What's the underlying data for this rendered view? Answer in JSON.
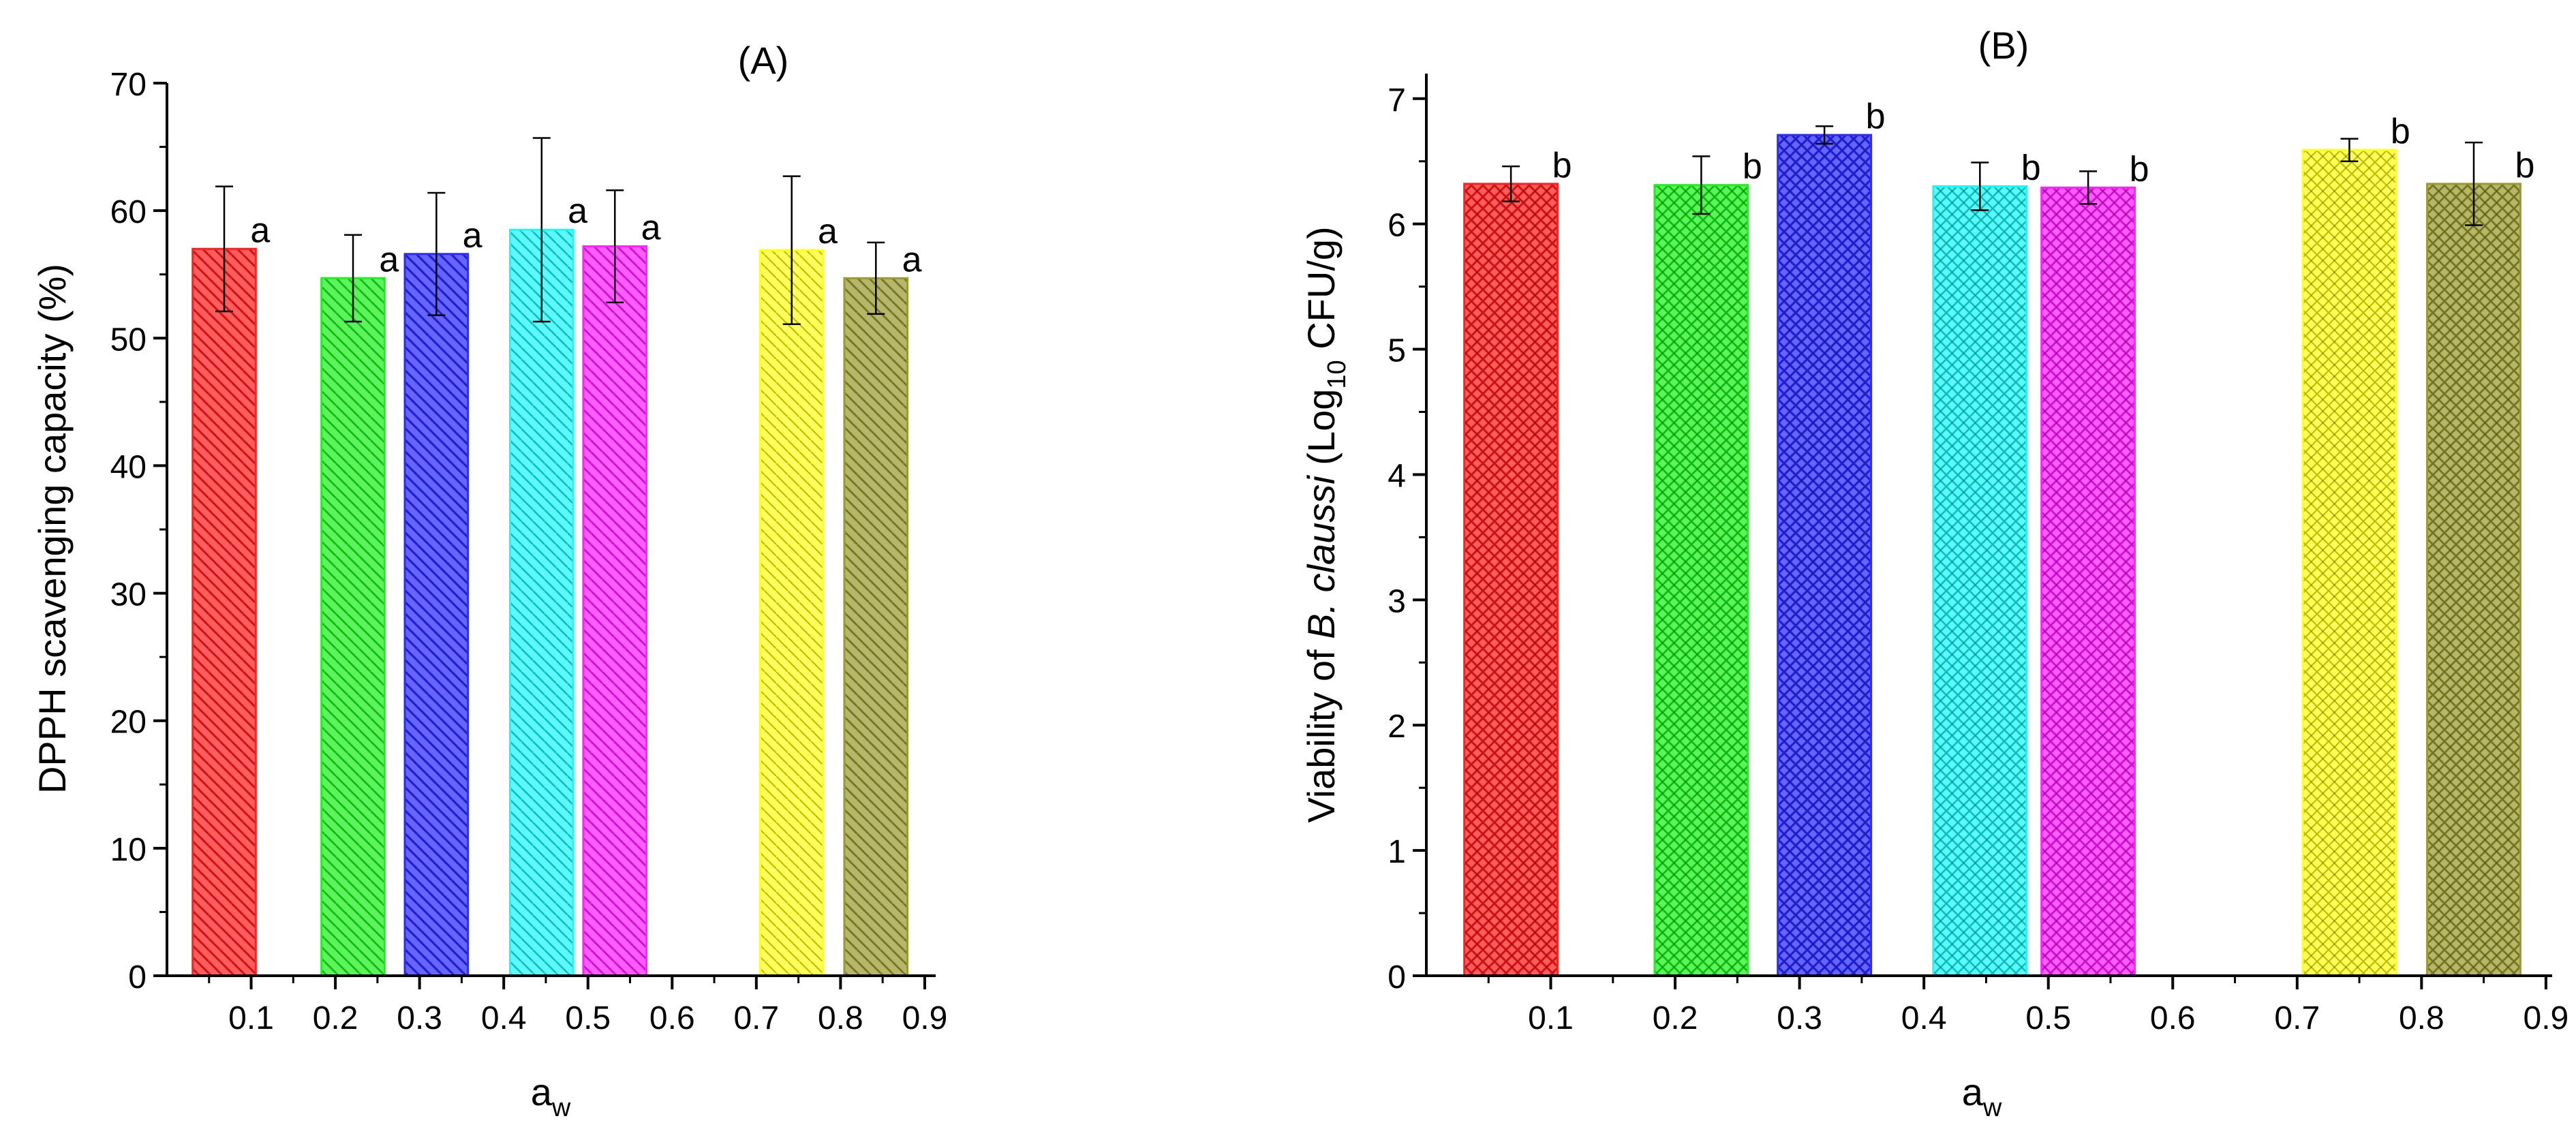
{
  "figure": {
    "panels": [
      {
        "id": "A",
        "label": "(A)"
      },
      {
        "id": "B",
        "label": "(B)"
      }
    ]
  },
  "chart_data": [
    {
      "type": "bar",
      "panel_label": "(A)",
      "xlabel": "a",
      "xlabel_subscript": "w",
      "ylabel": "DPPH scavenging capacity (%)",
      "xlim": [
        0.0,
        0.9
      ],
      "ylim": [
        0,
        70
      ],
      "xticks": [
        "0.1",
        "0.2",
        "0.3",
        "0.4",
        "0.5",
        "0.6",
        "0.7",
        "0.8",
        "0.9"
      ],
      "yticks": [
        "0",
        "10",
        "20",
        "30",
        "40",
        "50",
        "60",
        "70"
      ],
      "bars": [
        {
          "x": 0.068,
          "width": 0.075,
          "value": 57.0,
          "error": 4.9,
          "label": "a",
          "color": "#ff2020",
          "hatch": "down"
        },
        {
          "x": 0.221,
          "width": 0.075,
          "value": 54.7,
          "error": 3.4,
          "label": "a",
          "color": "#22ee22",
          "hatch": "down"
        },
        {
          "x": 0.32,
          "width": 0.075,
          "value": 56.6,
          "error": 4.8,
          "label": "a",
          "color": "#2b2bff",
          "hatch": "down"
        },
        {
          "x": 0.445,
          "width": 0.075,
          "value": 58.5,
          "error": 7.2,
          "label": "a",
          "color": "#22f5f5",
          "hatch": "down"
        },
        {
          "x": 0.532,
          "width": 0.075,
          "value": 57.2,
          "error": 4.4,
          "label": "a",
          "color": "#ff22ff",
          "hatch": "down"
        },
        {
          "x": 0.742,
          "width": 0.075,
          "value": 56.9,
          "error": 5.8,
          "label": "a",
          "color": "#ffff22",
          "hatch": "down"
        },
        {
          "x": 0.842,
          "width": 0.075,
          "value": 54.7,
          "error": 2.8,
          "label": "a",
          "color": "#9a9a33",
          "hatch": "down"
        }
      ]
    },
    {
      "type": "bar",
      "panel_label": "(B)",
      "xlabel": "a",
      "xlabel_subscript": "w",
      "ylabel_parts": {
        "prefix": "Viability of ",
        "italic": "B. claussi",
        "middle": " (Log",
        "subscript": "10",
        "suffix": " CFU/g)"
      },
      "xlim": [
        0.0,
        0.9
      ],
      "ylim": [
        0,
        7.2
      ],
      "xticks": [
        "0.1",
        "0.2",
        "0.3",
        "0.4",
        "0.5",
        "0.6",
        "0.7",
        "0.8",
        "0.9"
      ],
      "yticks": [
        "0",
        "1",
        "2",
        "3",
        "4",
        "5",
        "6",
        "7"
      ],
      "bars": [
        {
          "x": 0.068,
          "width": 0.075,
          "value": 6.32,
          "error": 0.14,
          "label": "b",
          "color": "#ff2020",
          "hatch": "cross"
        },
        {
          "x": 0.221,
          "width": 0.075,
          "value": 6.31,
          "error": 0.23,
          "label": "b",
          "color": "#22ee22",
          "hatch": "cross"
        },
        {
          "x": 0.32,
          "width": 0.075,
          "value": 6.71,
          "error": 0.07,
          "label": "b",
          "color": "#2b2bff",
          "hatch": "cross"
        },
        {
          "x": 0.445,
          "width": 0.075,
          "value": 6.3,
          "error": 0.19,
          "label": "b",
          "color": "#22f5f5",
          "hatch": "cross"
        },
        {
          "x": 0.532,
          "width": 0.075,
          "value": 6.29,
          "error": 0.13,
          "label": "b",
          "color": "#ff22ff",
          "hatch": "cross"
        },
        {
          "x": 0.742,
          "width": 0.075,
          "value": 6.59,
          "error": 0.09,
          "label": "b",
          "color": "#ffff22",
          "hatch": "cross"
        },
        {
          "x": 0.842,
          "width": 0.075,
          "value": 6.32,
          "error": 0.33,
          "label": "b",
          "color": "#9a9a33",
          "hatch": "cross"
        }
      ]
    }
  ]
}
